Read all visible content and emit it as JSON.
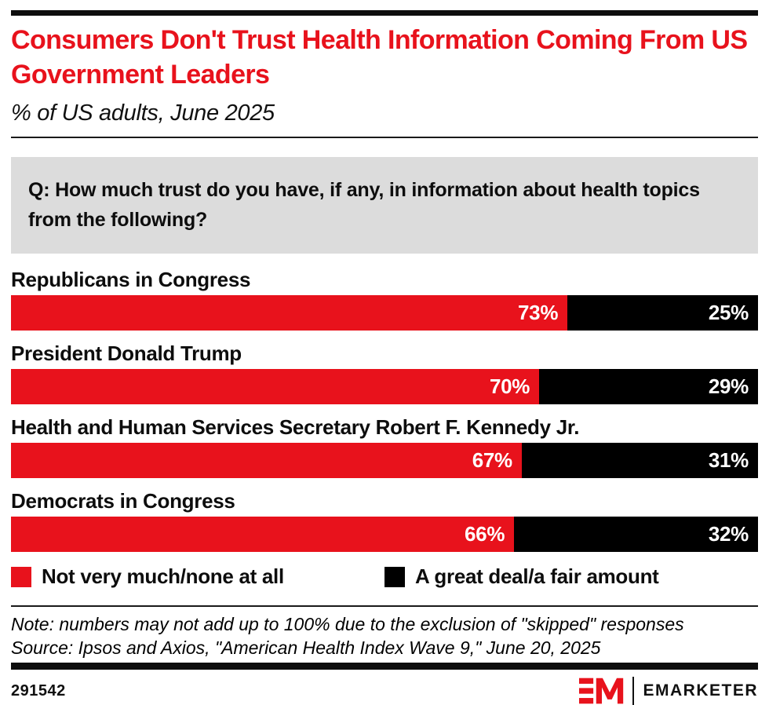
{
  "colors": {
    "accent_red": "#e8121c",
    "bar_black": "#000000",
    "question_box_gray": "#dcdcdc"
  },
  "header": {
    "title": "Consumers Don't Trust Health Information Coming From US Government Leaders",
    "subtitle": "% of US adults, June 2025"
  },
  "question": "Q: How much trust do you have, if any, in information about health topics from the following?",
  "chart_data": {
    "type": "bar",
    "orientation": "horizontal",
    "stacked": true,
    "title": "Consumers Don't Trust Health Information Coming From US Government Leaders",
    "subtitle": "% of US adults, June 2025",
    "categories": [
      "Republicans in Congress",
      "President Donald Trump",
      "Health and Human Services Secretary Robert F. Kennedy Jr.",
      "Democrats in Congress"
    ],
    "series": [
      {
        "name": "Not very much/none at all",
        "color": "#e8121c",
        "values": [
          73,
          70,
          67,
          66
        ]
      },
      {
        "name": "A great deal/a fair amount",
        "color": "#000000",
        "values": [
          25,
          29,
          31,
          32
        ]
      }
    ],
    "value_suffix": "%",
    "legend_position": "bottom",
    "grid": false
  },
  "notes": {
    "note": "Note: numbers may not add up to 100% due to the exclusion of \"skipped\" responses",
    "source": "Source: Ipsos and Axios, \"American Health Index Wave 9,\" June 20, 2025"
  },
  "footer": {
    "chart_id": "291542",
    "brand_monogram": "EM",
    "brand_name": "EMARKETER"
  }
}
